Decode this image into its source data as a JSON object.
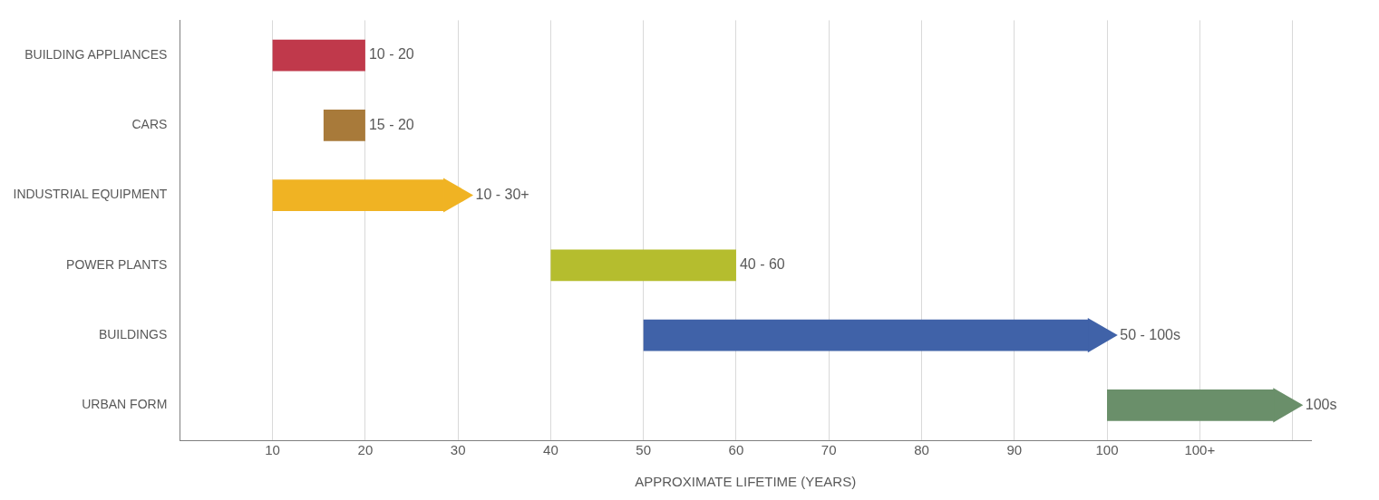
{
  "chart_data": {
    "type": "bar",
    "orientation": "horizontal",
    "xlabel": "APPROXIMATE LIFETIME (YEARS)",
    "categories": [
      "BUILDING APPLIANCES",
      "CARS",
      "INDUSTRIAL EQUIPMENT",
      "POWER PLANTS",
      "BUILDINGS",
      "URBAN FORM"
    ],
    "series": [
      {
        "base": [
          10,
          15.5,
          10,
          40,
          50,
          100
        ],
        "values": [
          10,
          4.5,
          18.5,
          20,
          48,
          18
        ],
        "colors": [
          "#c0394b",
          "#a87a3a",
          "#f0b323",
          "#b5bd2e",
          "#4062a8",
          "#6a8f6a"
        ]
      },
      {
        "type": "scatter",
        "x": [
          "INDUSTRIAL EQUIPMENT",
          "BUILDINGS",
          "URBAN FORM"
        ],
        "values": [
          29.5,
          99,
          119
        ],
        "colors": [
          "#f0b323",
          "#4062a8",
          "#6a8f6a"
        ]
      }
    ],
    "annotations": [
      {
        "text": "10 - 20",
        "x": 20,
        "y": "BUILDING APPLIANCES"
      },
      {
        "text": "15 - 20",
        "x": 20,
        "y": "CARS"
      },
      {
        "text": "10 - 30+",
        "x": 31.5,
        "y": "INDUSTRIAL EQUIPMENT"
      },
      {
        "text": "40 - 60",
        "x": 60,
        "y": "POWER PLANTS"
      },
      {
        "text": "50 - 100s",
        "x": 101,
        "y": "BUILDINGS"
      },
      {
        "text": "100s",
        "x": 121,
        "y": "URBAN FORM"
      }
    ],
    "xlim": [
      0,
      122
    ],
    "xticks": [
      10,
      20,
      30,
      40,
      50,
      60,
      70,
      80,
      90,
      100,
      {
        "value": 110,
        "label": "100+"
      },
      {
        "value": 120,
        "label": null
      }
    ],
    "grid": "x",
    "marker": "triangle",
    "legend": false
  }
}
